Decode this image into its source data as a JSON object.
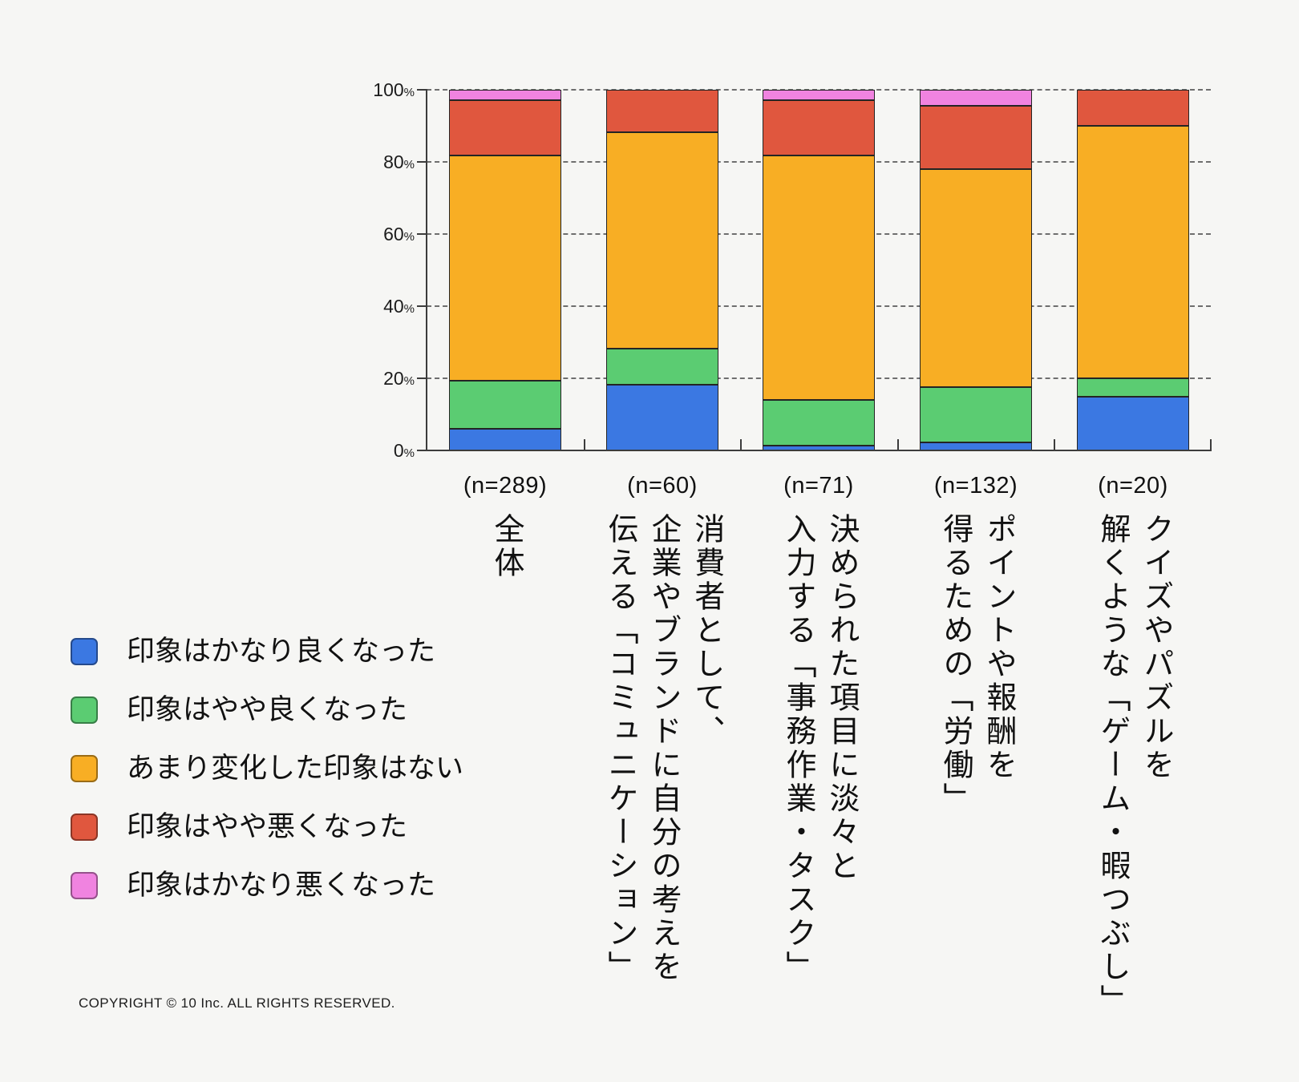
{
  "page": {
    "background": "#f6f6f4",
    "copyright": "COPYRIGHT © 10 Inc. ALL RIGHTS RESERVED."
  },
  "axis": {
    "y_unit": "%",
    "y_ticks": [
      0,
      20,
      40,
      60,
      80,
      100
    ]
  },
  "chart_data": {
    "type": "bar",
    "stacked": true,
    "percent_stacked": true,
    "title": "",
    "xlabel": "",
    "ylabel": "",
    "ylim": [
      0,
      100
    ],
    "grid": "horizontal-dashed",
    "legend_position": "bottom-left",
    "categories": [
      "全体",
      "消費者として、企業やブランドに自分の考えを伝える「コミュニケーション」",
      "決められた項目に淡々と入力する「事務作業・タスク」",
      "ポイントや報酬を得るための「労働」",
      "クイズやパズルを解くような「ゲーム・暇つぶし」"
    ],
    "category_label_lines": [
      "全体",
      "消費者として、\n企業やブランドに自分の考えを\n伝える「コミュニケーション」",
      "決められた項目に淡々と\n入力する「事務作業・タスク」",
      "ポイントや報酬を\n得るための「労働」",
      "クイズやパズルを\n解くような「ゲーム・暇つぶし」"
    ],
    "sample_sizes": [
      "(n=289)",
      "(n=60)",
      "(n=71)",
      "(n=132)",
      "(n=20)"
    ],
    "series": [
      {
        "name": "印象はかなり良くなった",
        "color": "#3b78e2",
        "values": [
          5.9,
          18.3,
          1.4,
          2.3,
          15.0
        ]
      },
      {
        "name": "印象はやや良くなった",
        "color": "#5bcc72",
        "values": [
          13.5,
          10.0,
          12.7,
          15.2,
          5.0
        ]
      },
      {
        "name": "あまり変化した印象はない",
        "color": "#f8ae24",
        "values": [
          62.3,
          60.0,
          67.6,
          60.6,
          70.0
        ]
      },
      {
        "name": "印象はやや悪くなった",
        "color": "#e0573e",
        "values": [
          15.5,
          11.7,
          15.5,
          17.4,
          10.0
        ]
      },
      {
        "name": "印象はかなり悪くなった",
        "color": "#f083e0",
        "values": [
          2.8,
          0,
          2.8,
          4.5,
          0
        ]
      }
    ]
  }
}
